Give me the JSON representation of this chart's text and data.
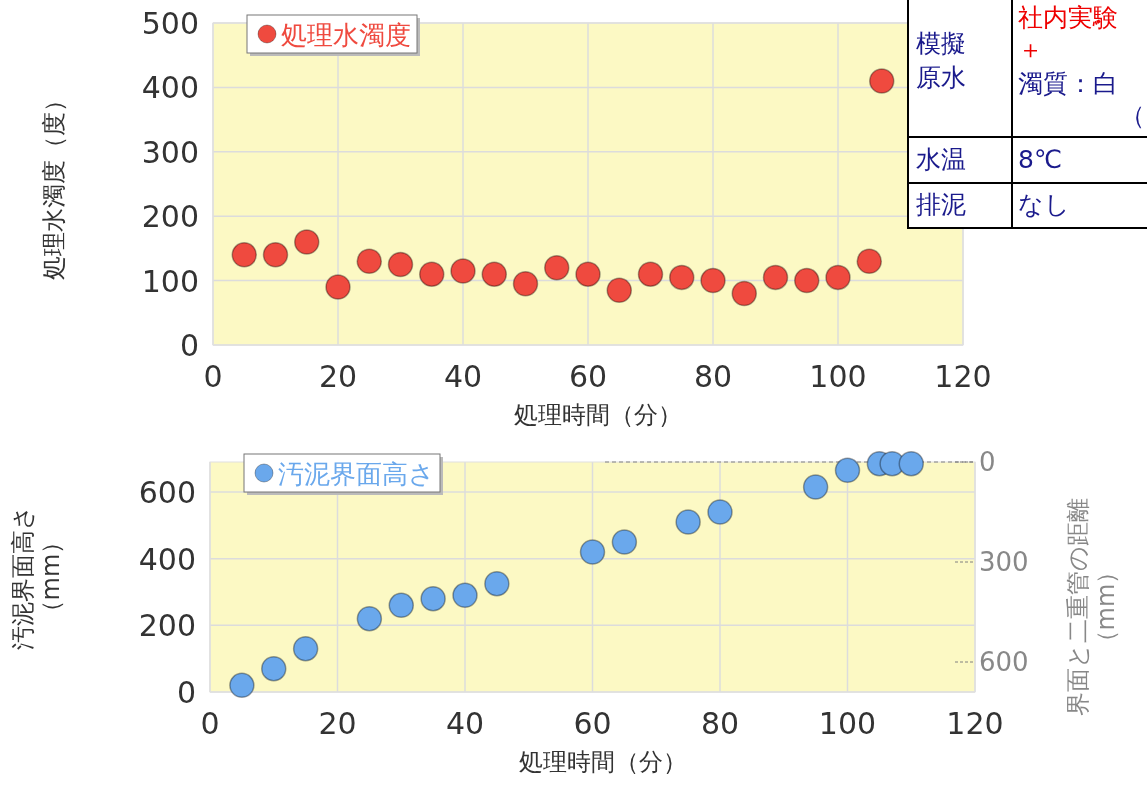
{
  "chart_data": [
    {
      "type": "scatter",
      "xlabel": "処理時間（分）",
      "ylabel": "処理水濁度（度）",
      "xlim": [
        0,
        120
      ],
      "xticks": [
        0,
        20,
        40,
        60,
        80,
        100,
        120
      ],
      "ylim": [
        0,
        500
      ],
      "yticks": [
        0,
        100,
        200,
        300,
        400,
        500
      ],
      "grid": true,
      "legend": "top left",
      "marker": "circle",
      "series": [
        {
          "name": "処理水濁度",
          "color": "#ef4a3f",
          "x": [
            5,
            10,
            15,
            20,
            25,
            30,
            35,
            40,
            45,
            50,
            55,
            60,
            65,
            70,
            75,
            80,
            85,
            90,
            95,
            100,
            105,
            107
          ],
          "values": [
            140,
            140,
            160,
            90,
            130,
            125,
            110,
            115,
            110,
            95,
            120,
            110,
            85,
            110,
            105,
            100,
            80,
            105,
            100,
            105,
            130,
            410
          ]
        }
      ]
    },
    {
      "type": "scatter",
      "xlabel": "処理時間（分）",
      "ylabel": "汚泥界面高さ（mm）",
      "y2label": "界面と二重管の距離（mm）",
      "xlim": [
        0,
        120
      ],
      "xticks": [
        0,
        20,
        40,
        60,
        80,
        100,
        120
      ],
      "ylim": [
        0,
        690
      ],
      "yticks": [
        0,
        200,
        400,
        600
      ],
      "y2lim": [
        690,
        0
      ],
      "y2ticks": [
        0,
        300,
        600
      ],
      "grid": true,
      "legend": "top left",
      "marker": "circle",
      "ref_lines": [
        {
          "axis": "y2",
          "value": 0,
          "color": "#808080",
          "line_style": "dashed"
        }
      ],
      "series": [
        {
          "name": "汚泥界面高さ",
          "color": "#6aa8ec",
          "x": [
            5,
            10,
            15,
            25,
            30,
            35,
            40,
            45,
            60,
            65,
            75,
            80,
            95,
            100,
            105,
            107,
            110
          ],
          "values": [
            20,
            70,
            130,
            220,
            260,
            280,
            290,
            325,
            420,
            450,
            510,
            540,
            615,
            665,
            685,
            685,
            685
          ]
        }
      ]
    },
    {
      "type": "other",
      "annotations": [
        "模擬原水",
        "社内実験",
        "＋",
        "濁質：白",
        "（",
        "水温",
        "8℃",
        "排泥",
        "なし"
      ]
    }
  ]
}
